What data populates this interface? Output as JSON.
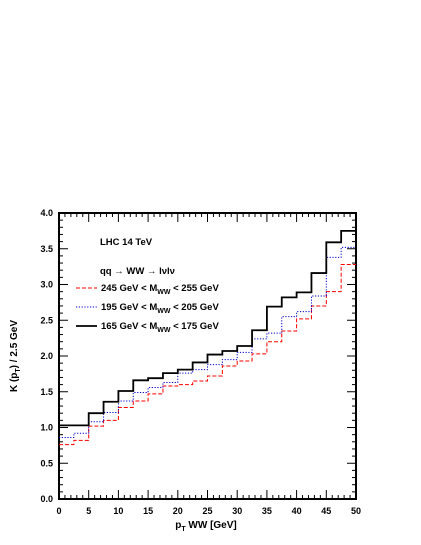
{
  "chart_data": {
    "type": "line",
    "style": "step",
    "xlabel": "p_T WW [GeV]",
    "ylabel": "K (p_T) / 2.5 GeV",
    "xlim": [
      0,
      50
    ],
    "ylim": [
      0,
      4.0
    ],
    "x_ticks": [
      "0",
      "5",
      "10",
      "15",
      "20",
      "25",
      "30",
      "35",
      "40",
      "45",
      "50"
    ],
    "y_ticks": [
      "0.0",
      "0.5",
      "1.0",
      "1.5",
      "2.0",
      "2.5",
      "3.0",
      "3.5",
      "4.0"
    ],
    "grid": false,
    "bin_edges": [
      0,
      2.5,
      5,
      7.5,
      10,
      12.5,
      15,
      17.5,
      20,
      22.5,
      25,
      27.5,
      30,
      32.5,
      35,
      37.5,
      40,
      42.5,
      45,
      47.5,
      50
    ],
    "annotations": [
      "LHC 14 TeV",
      "qq → WW → lνlν"
    ],
    "legend_placement": "top-left",
    "series": [
      {
        "name": "245 GeV < M_WW < 255 GeV",
        "color": "#ff0000",
        "dash": "dashed",
        "values": [
          0.76,
          0.82,
          1.02,
          1.1,
          1.28,
          1.37,
          1.47,
          1.58,
          1.6,
          1.65,
          1.72,
          1.86,
          1.93,
          2.03,
          2.2,
          2.35,
          2.52,
          2.7,
          2.9,
          3.28
        ]
      },
      {
        "name": "195 GeV < M_WW < 205 GeV",
        "color": "#0000cc",
        "dash": "dotted",
        "values": [
          0.86,
          0.92,
          1.08,
          1.21,
          1.37,
          1.49,
          1.56,
          1.63,
          1.76,
          1.81,
          1.88,
          1.95,
          2.05,
          2.24,
          2.32,
          2.55,
          2.62,
          2.84,
          3.38,
          3.52
        ]
      },
      {
        "name": "165 GeV < M_WW < 175 GeV",
        "color": "#000000",
        "dash": "solid",
        "values": [
          1.03,
          1.03,
          1.2,
          1.36,
          1.51,
          1.66,
          1.69,
          1.76,
          1.81,
          1.91,
          2.02,
          2.07,
          2.14,
          2.36,
          2.69,
          2.82,
          2.89,
          3.16,
          3.59,
          3.75
        ]
      }
    ]
  }
}
